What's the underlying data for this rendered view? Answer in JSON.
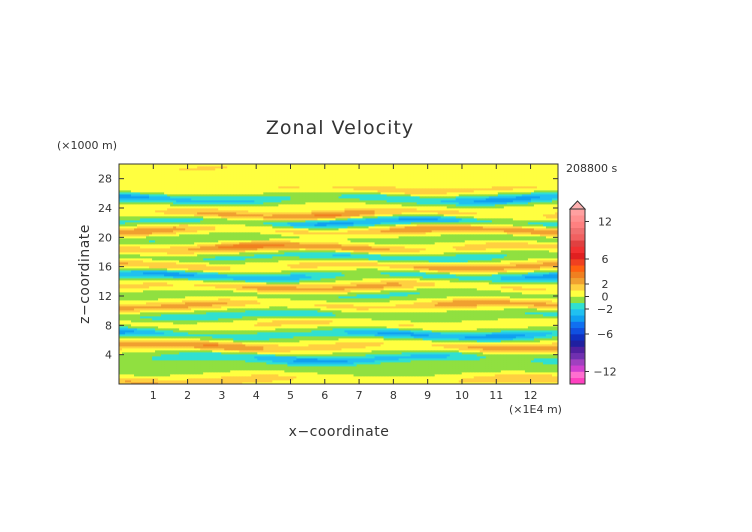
{
  "chart_data": {
    "type": "heatmap",
    "title": "Zonal Velocity",
    "xlabel": "x−coordinate",
    "ylabel": "z−coordinate",
    "x_unit": "(×1E4 m)",
    "y_unit": "(×1000 m)",
    "time_label": "208800 s",
    "xlim": [
      0,
      12.8
    ],
    "ylim": [
      0,
      30
    ],
    "x_ticks": [
      1,
      2,
      3,
      4,
      5,
      6,
      7,
      8,
      9,
      10,
      11,
      12
    ],
    "y_ticks": [
      4,
      8,
      12,
      16,
      20,
      24,
      28
    ],
    "colorbar": {
      "ticks": [
        "12",
        "6",
        "2",
        "0",
        "−2",
        "−6",
        "−12"
      ],
      "tick_values": [
        12,
        6,
        2,
        0,
        -2,
        -6,
        -12
      ],
      "levels": [
        -14,
        -13,
        -12,
        -11,
        -10,
        -9,
        -8,
        -7,
        -6,
        -5,
        -4,
        -3,
        -2,
        -1,
        0,
        1,
        2,
        3,
        4,
        5,
        6,
        7,
        8,
        9,
        10,
        11,
        12,
        13,
        14
      ],
      "colors": [
        "#ff40c0",
        "#ff6fd0",
        "#d040d0",
        "#a040c0",
        "#7030b0",
        "#5020a0",
        "#2020a0",
        "#1030c0",
        "#1050e0",
        "#1070f0",
        "#10a0f0",
        "#20c0f0",
        "#30e0d0",
        "#90e040",
        "#ffff40",
        "#ffd040",
        "#f0a030",
        "#f08020",
        "#ff6010",
        "#f04020",
        "#e02020",
        "#f03030",
        "#e04040",
        "#f06060",
        "#f07070",
        "#ff8080",
        "#ff9090",
        "#ffa0a0"
      ]
    },
    "bands": [
      {
        "z": 0.5,
        "u": 1.8
      },
      {
        "z": 2.0,
        "u": -0.4
      },
      {
        "z": 3.5,
        "u": -2.8
      },
      {
        "z": 5.2,
        "u": 2.6
      },
      {
        "z": 6.8,
        "u": -3.1
      },
      {
        "z": 8.2,
        "u": 1.2
      },
      {
        "z": 9.4,
        "u": -1.6
      },
      {
        "z": 10.8,
        "u": 2.4
      },
      {
        "z": 12.2,
        "u": -1.1
      },
      {
        "z": 13.3,
        "u": 2.3
      },
      {
        "z": 14.8,
        "u": -2.9
      },
      {
        "z": 16.1,
        "u": 2.5
      },
      {
        "z": 17.4,
        "u": -2.0
      },
      {
        "z": 18.6,
        "u": 3.0
      },
      {
        "z": 19.8,
        "u": -0.9
      },
      {
        "z": 21.0,
        "u": 2.7
      },
      {
        "z": 22.2,
        "u": -3.2
      },
      {
        "z": 23.1,
        "u": 2.8
      },
      {
        "z": 24.3,
        "u": 0.4
      },
      {
        "z": 25.3,
        "u": -2.9
      },
      {
        "z": 26.6,
        "u": 1.4
      },
      {
        "z": 27.8,
        "u": 0.2
      },
      {
        "z": 29.2,
        "u": 0.9
      }
    ]
  }
}
